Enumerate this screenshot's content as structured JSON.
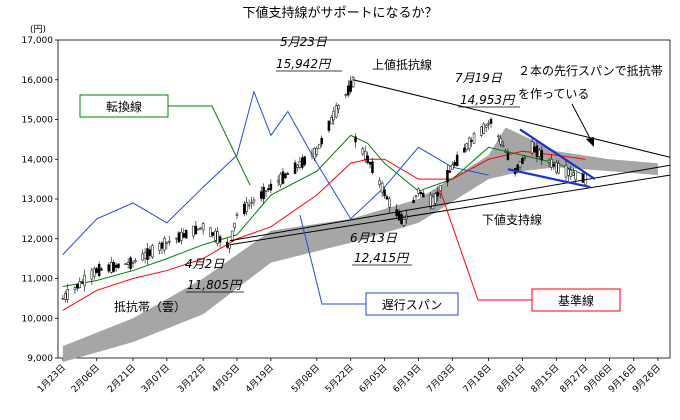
{
  "colors": {
    "kumo": "#a6a6a6",
    "kumo_future": "#c8c8c8",
    "conversion_line": "#008000",
    "base_line": "#ff0000",
    "lagging_span": "#1f4ecf",
    "trend_blue": "#1a2fd6",
    "trendline": "#000000",
    "candle": "#000000"
  },
  "chart_data": {
    "type": "candlestick",
    "title": "下値支持線がサポートになるか？",
    "ylabel": "(円)",
    "ylim": [
      9000,
      17000
    ],
    "yticks": [
      9000,
      10000,
      11000,
      12000,
      13000,
      14000,
      15000,
      16000,
      17000
    ],
    "ytick_labels": [
      "9,000",
      "10,000",
      "11,000",
      "12,000",
      "13,000",
      "14,000",
      "15,000",
      "16,000",
      "17,000"
    ],
    "x_range": [
      "2013-01-21",
      "2013-10-01"
    ],
    "xticks": [
      {
        "date": "2013-01-23",
        "label": "1月23日"
      },
      {
        "date": "2013-02-06",
        "label": "2月06日"
      },
      {
        "date": "2013-02-21",
        "label": "2月21日"
      },
      {
        "date": "2013-03-07",
        "label": "3月07日"
      },
      {
        "date": "2013-03-22",
        "label": "3月22日"
      },
      {
        "date": "2013-04-05",
        "label": "4月05日"
      },
      {
        "date": "2013-04-19",
        "label": "4月19日"
      },
      {
        "date": "2013-05-08",
        "label": "5月08日"
      },
      {
        "date": "2013-05-22",
        "label": "5月22日"
      },
      {
        "date": "2013-06-05",
        "label": "6月05日"
      },
      {
        "date": "2013-06-19",
        "label": "6月19日"
      },
      {
        "date": "2013-07-03",
        "label": "7月03日"
      },
      {
        "date": "2013-07-18",
        "label": "7月18日"
      },
      {
        "date": "2013-08-01",
        "label": "8月01日"
      },
      {
        "date": "2013-08-15",
        "label": "8月15日"
      },
      {
        "date": "2013-08-27",
        "label": "8月27日"
      },
      {
        "date": "2013-09-06",
        "label": "9月06日"
      },
      {
        "date": "2013-09-16",
        "label": "9月16日"
      },
      {
        "date": "2013-09-26",
        "label": "9月26日"
      }
    ],
    "price_path": [
      [
        "2013-01-23",
        10500
      ],
      [
        "2013-02-06",
        11200
      ],
      [
        "2013-02-21",
        11400
      ],
      [
        "2013-03-07",
        11900
      ],
      [
        "2013-03-22",
        12300
      ],
      [
        "2013-04-02",
        11805
      ],
      [
        "2013-04-05",
        12600
      ],
      [
        "2013-04-19",
        13300
      ],
      [
        "2013-05-08",
        14200
      ],
      [
        "2013-05-15",
        15100
      ],
      [
        "2013-05-23",
        15942
      ],
      [
        "2013-05-24",
        14500
      ],
      [
        "2013-05-31",
        13800
      ],
      [
        "2013-06-07",
        12900
      ],
      [
        "2013-06-13",
        12415
      ],
      [
        "2013-06-19",
        13200
      ],
      [
        "2013-06-25",
        12900
      ],
      [
        "2013-07-03",
        13800
      ],
      [
        "2013-07-10",
        14400
      ],
      [
        "2013-07-19",
        14953
      ],
      [
        "2013-07-29",
        13700
      ],
      [
        "2013-08-05",
        14300
      ],
      [
        "2013-08-15",
        13800
      ],
      [
        "2013-08-27",
        13500
      ]
    ],
    "series": [
      {
        "name": "転換線",
        "color_key": "conversion_line",
        "points": [
          [
            "2013-01-23",
            10800
          ],
          [
            "2013-02-06",
            10950
          ],
          [
            "2013-02-21",
            11200
          ],
          [
            "2013-03-07",
            11500
          ],
          [
            "2013-03-22",
            11850
          ],
          [
            "2013-04-05",
            12100
          ],
          [
            "2013-04-19",
            13100
          ],
          [
            "2013-05-08",
            13700
          ],
          [
            "2013-05-22",
            14600
          ],
          [
            "2013-05-29",
            14400
          ],
          [
            "2013-06-05",
            13900
          ],
          [
            "2013-06-19",
            13200
          ],
          [
            "2013-07-03",
            13500
          ],
          [
            "2013-07-18",
            14300
          ],
          [
            "2013-08-01",
            14100
          ],
          [
            "2013-08-15",
            13900
          ],
          [
            "2013-08-27",
            13600
          ]
        ]
      },
      {
        "name": "基準線",
        "color_key": "base_line",
        "points": [
          [
            "2013-01-23",
            10200
          ],
          [
            "2013-02-06",
            10700
          ],
          [
            "2013-02-21",
            11000
          ],
          [
            "2013-03-07",
            11200
          ],
          [
            "2013-03-22",
            11500
          ],
          [
            "2013-04-05",
            12000
          ],
          [
            "2013-04-19",
            12300
          ],
          [
            "2013-05-08",
            13100
          ],
          [
            "2013-05-22",
            13900
          ],
          [
            "2013-05-29",
            14000
          ],
          [
            "2013-06-05",
            14000
          ],
          [
            "2013-06-19",
            13500
          ],
          [
            "2013-07-03",
            13500
          ],
          [
            "2013-07-18",
            14000
          ],
          [
            "2013-08-01",
            14200
          ],
          [
            "2013-08-15",
            14100
          ],
          [
            "2013-08-27",
            14000
          ]
        ]
      },
      {
        "name": "遅行スパン",
        "color_key": "lagging_span",
        "points": [
          [
            "2013-01-23",
            11600
          ],
          [
            "2013-02-06",
            12500
          ],
          [
            "2013-02-21",
            12900
          ],
          [
            "2013-03-07",
            12400
          ],
          [
            "2013-03-22",
            13300
          ],
          [
            "2013-04-05",
            14100
          ],
          [
            "2013-04-12",
            15700
          ],
          [
            "2013-04-19",
            14600
          ],
          [
            "2013-04-26",
            15200
          ],
          [
            "2013-05-08",
            13900
          ],
          [
            "2013-05-22",
            12500
          ],
          [
            "2013-06-05",
            13300
          ],
          [
            "2013-06-19",
            14300
          ],
          [
            "2013-07-03",
            13800
          ],
          [
            "2013-07-18",
            13600
          ]
        ]
      }
    ],
    "cloud": {
      "name": "抵抗帯（雲）",
      "upper": [
        [
          "2013-01-23",
          9300
        ],
        [
          "2013-02-21",
          10000
        ],
        [
          "2013-03-22",
          11000
        ],
        [
          "2013-04-19",
          12200
        ],
        [
          "2013-05-22",
          12500
        ],
        [
          "2013-06-19",
          13000
        ],
        [
          "2013-07-18",
          14100
        ],
        [
          "2013-07-25",
          14800
        ],
        [
          "2013-08-01",
          14600
        ],
        [
          "2013-08-15",
          14200
        ],
        [
          "2013-09-06",
          14000
        ],
        [
          "2013-09-26",
          13900
        ]
      ],
      "lower": [
        [
          "2013-01-23",
          8900
        ],
        [
          "2013-02-21",
          9400
        ],
        [
          "2013-03-22",
          10100
        ],
        [
          "2013-04-19",
          11400
        ],
        [
          "2013-05-22",
          11900
        ],
        [
          "2013-06-19",
          12400
        ],
        [
          "2013-07-18",
          13500
        ],
        [
          "2013-08-01",
          13700
        ],
        [
          "2013-08-15",
          13800
        ],
        [
          "2013-09-06",
          13700
        ],
        [
          "2013-09-26",
          13600
        ]
      ]
    },
    "trendlines": [
      {
        "name": "上値抵抗線",
        "color_key": "trendline",
        "from": [
          "2013-05-23",
          16000
        ],
        "to": [
          "2013-10-01",
          14050
        ]
      },
      {
        "name": "下値支持線",
        "color_key": "trendline",
        "from": [
          "2013-04-02",
          11850
        ],
        "to": [
          "2013-10-01",
          13600
        ]
      },
      {
        "name": "下値支持線",
        "color_key": "trendline",
        "from": [
          "2013-04-02",
          11950
        ],
        "to": [
          "2013-10-01",
          13850
        ]
      },
      {
        "color_key": "trend_blue",
        "from": [
          "2013-07-31",
          14750
        ],
        "to": [
          "2013-08-31",
          13500
        ]
      },
      {
        "color_key": "trend_blue",
        "from": [
          "2013-07-26",
          13750
        ],
        "to": [
          "2013-08-29",
          13300
        ]
      }
    ],
    "annotations": {
      "may23_date": "5月23日",
      "may23_price": "15,942円",
      "jul19_date": "7月19日",
      "jul19_price": "14,953円",
      "apr2_date": "4月2日",
      "apr2_price": "11,805円",
      "jun13_date": "6月13日",
      "jun13_price": "12,415円",
      "upper_resistance": "上値抵抗線",
      "lower_support": "下値支持線",
      "cloud_label": "抵抗帯（雲）",
      "senko_note_1": "２本の先行スパンで抵抗帯",
      "senko_note_2": "を作っている",
      "conversion_label": "転換線",
      "base_label": "基準線",
      "lagging_label": "遅行スパン"
    }
  }
}
